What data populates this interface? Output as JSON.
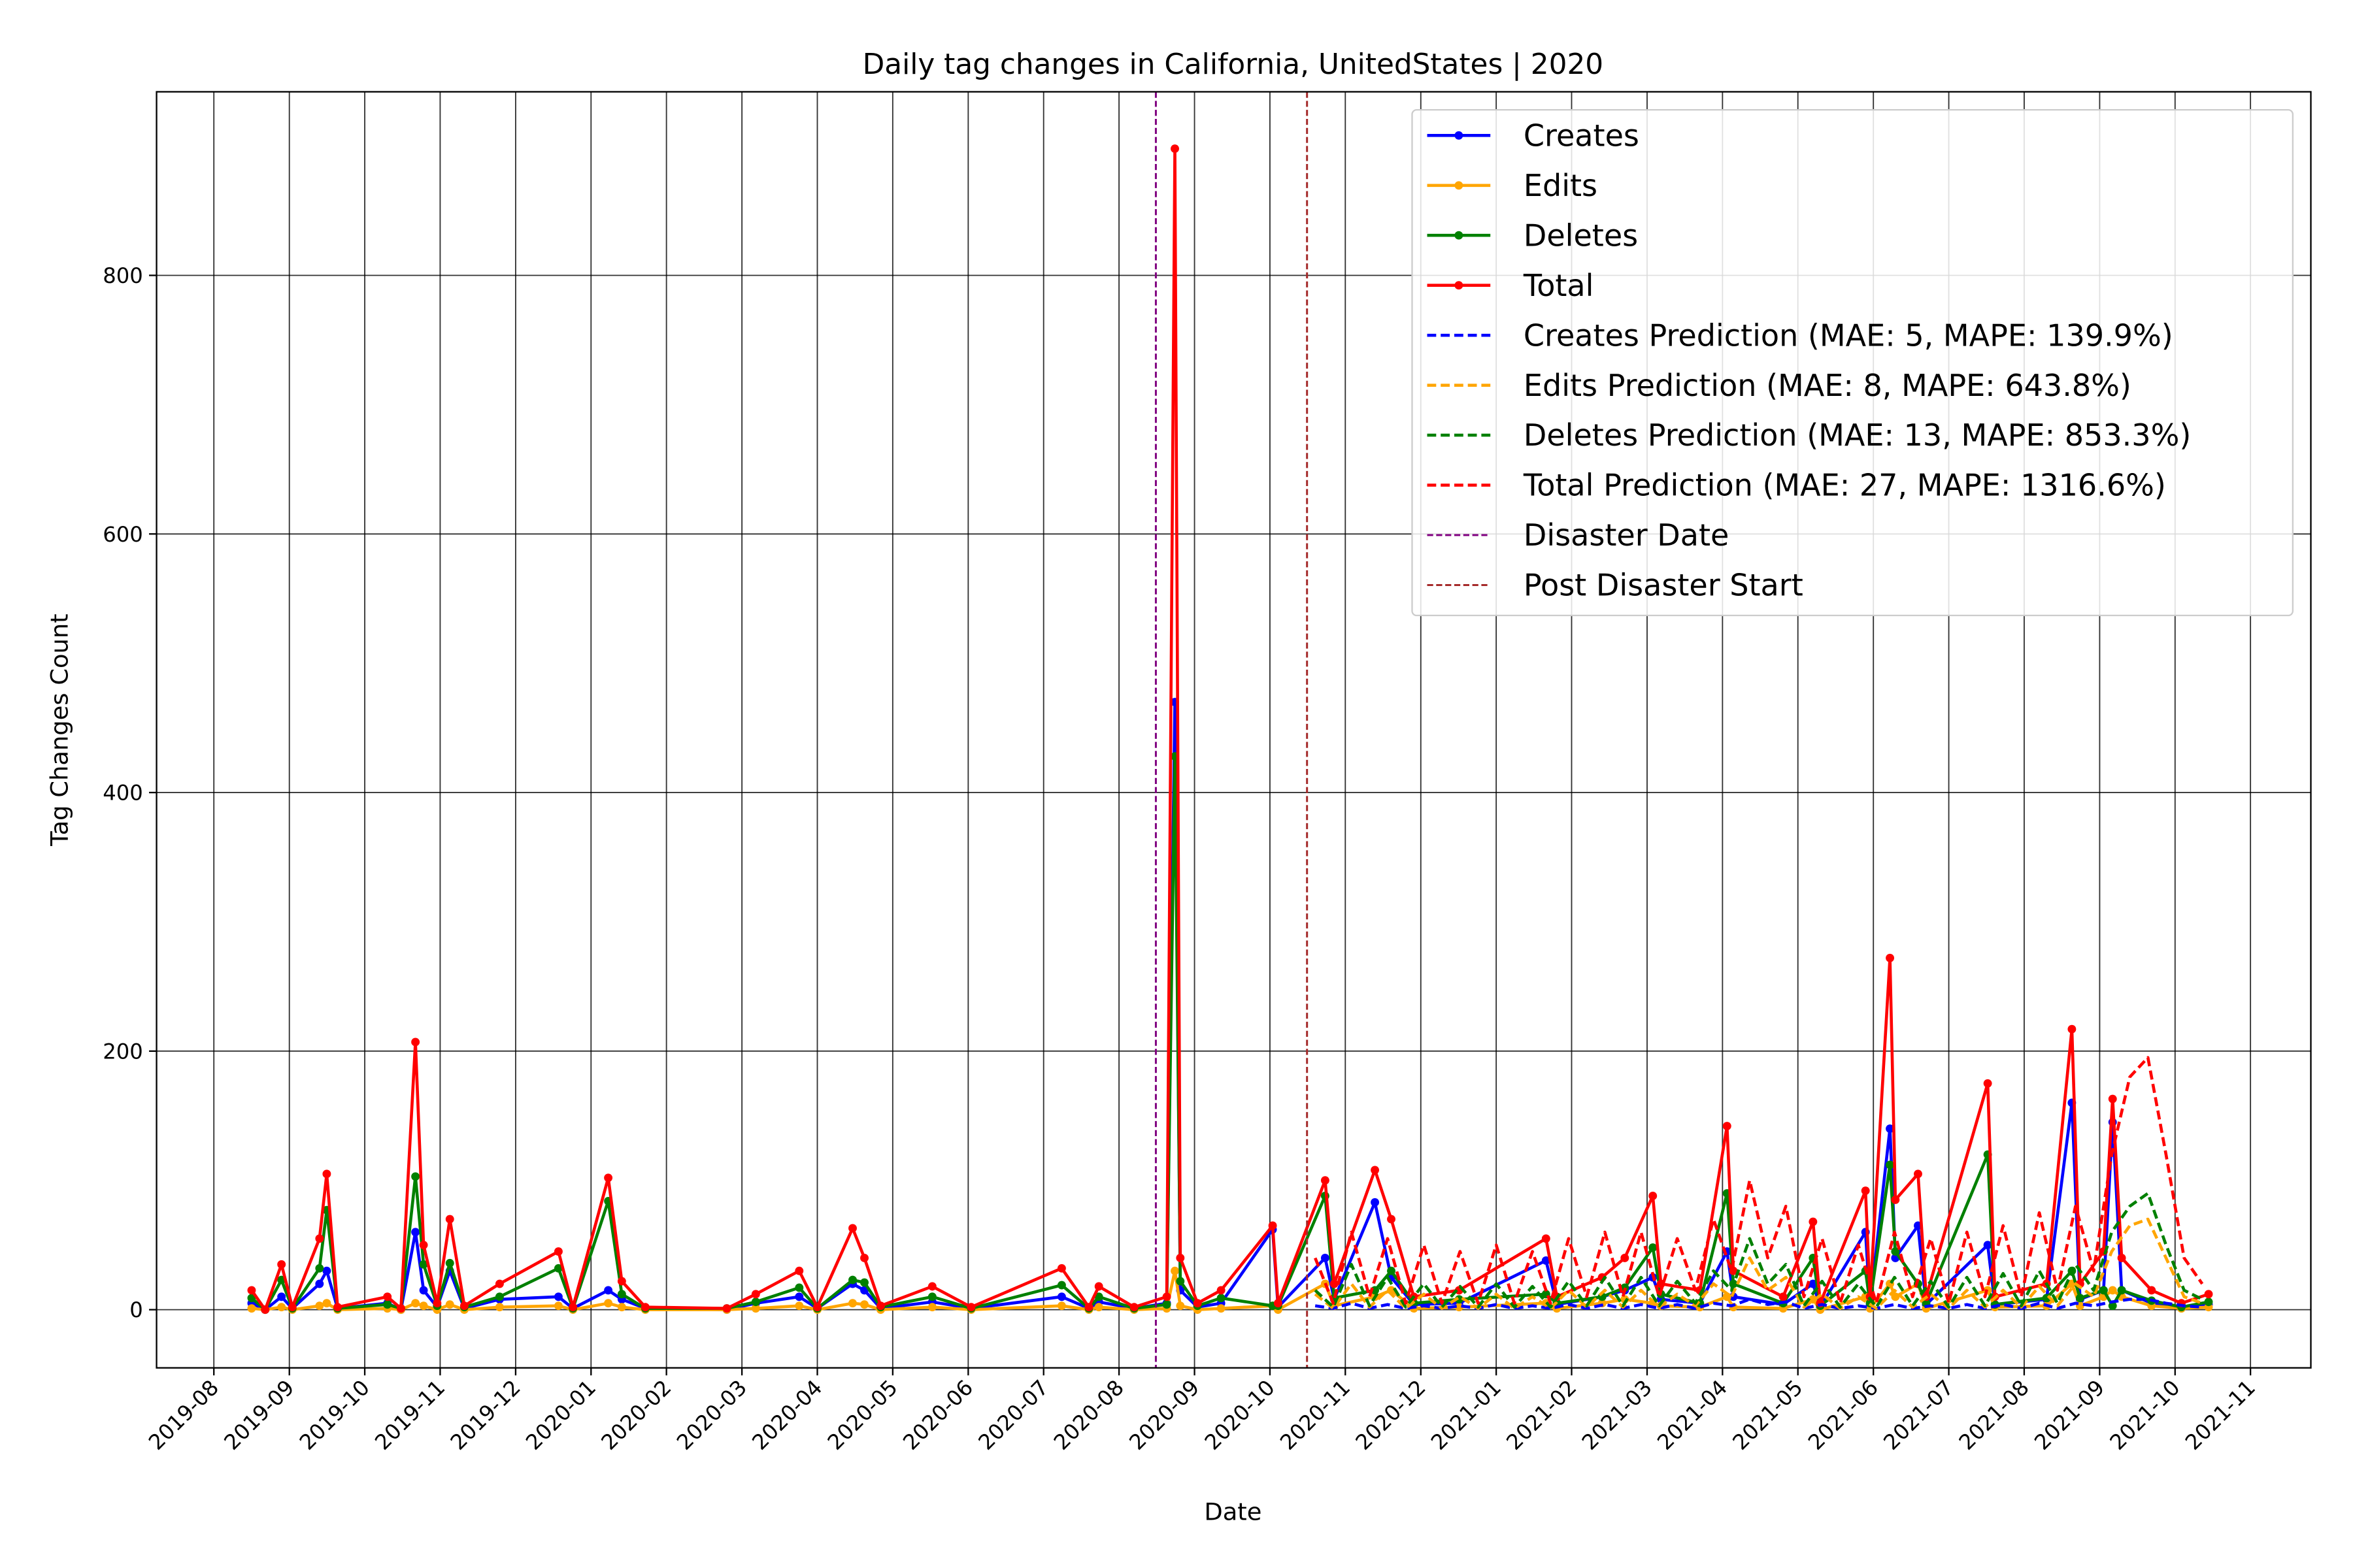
{
  "chart_data": {
    "type": "line",
    "title": "Daily tag changes in California, UnitedStates | 2020",
    "x_label": "Date",
    "y_label": "Tag Changes Count",
    "xlim": [
      2019.52,
      2021.9
    ],
    "ylim": [
      -45,
      942
    ],
    "yticks": [
      0,
      200,
      400,
      600,
      800
    ],
    "xticks": [
      {
        "value": 2019.5833,
        "label": "2019-08"
      },
      {
        "value": 2019.6667,
        "label": "2019-09"
      },
      {
        "value": 2019.75,
        "label": "2019-10"
      },
      {
        "value": 2019.8333,
        "label": "2019-11"
      },
      {
        "value": 2019.9167,
        "label": "2019-12"
      },
      {
        "value": 2020.0,
        "label": "2020-01"
      },
      {
        "value": 2020.0833,
        "label": "2020-02"
      },
      {
        "value": 2020.1667,
        "label": "2020-03"
      },
      {
        "value": 2020.25,
        "label": "2020-04"
      },
      {
        "value": 2020.3333,
        "label": "2020-05"
      },
      {
        "value": 2020.4167,
        "label": "2020-06"
      },
      {
        "value": 2020.5,
        "label": "2020-07"
      },
      {
        "value": 2020.5833,
        "label": "2020-08"
      },
      {
        "value": 2020.6667,
        "label": "2020-09"
      },
      {
        "value": 2020.75,
        "label": "2020-10"
      },
      {
        "value": 2020.8333,
        "label": "2020-11"
      },
      {
        "value": 2020.9167,
        "label": "2020-12"
      },
      {
        "value": 2021.0,
        "label": "2021-01"
      },
      {
        "value": 2021.0833,
        "label": "2021-02"
      },
      {
        "value": 2021.1667,
        "label": "2021-03"
      },
      {
        "value": 2021.25,
        "label": "2021-04"
      },
      {
        "value": 2021.3333,
        "label": "2021-05"
      },
      {
        "value": 2021.4167,
        "label": "2021-06"
      },
      {
        "value": 2021.5,
        "label": "2021-07"
      },
      {
        "value": 2021.5833,
        "label": "2021-08"
      },
      {
        "value": 2021.6667,
        "label": "2021-09"
      },
      {
        "value": 2021.75,
        "label": "2021-10"
      },
      {
        "value": 2021.8333,
        "label": "2021-11"
      }
    ],
    "grid": true,
    "legend": "upper right",
    "x": [
      2019.625,
      2019.64,
      2019.658,
      2019.67,
      2019.7,
      2019.708,
      2019.72,
      2019.775,
      2019.79,
      2019.806,
      2019.815,
      2019.83,
      2019.844,
      2019.86,
      2019.899,
      2019.964,
      2019.98,
      2020.019,
      2020.034,
      2020.06,
      2020.15,
      2020.182,
      2020.23,
      2020.25,
      2020.289,
      2020.302,
      2020.32,
      2020.377,
      2020.42,
      2020.52,
      2020.55,
      2020.561,
      2020.6,
      2020.636,
      2020.645,
      2020.651,
      2020.67,
      2020.696,
      2020.753,
      2020.759,
      2020.811,
      2020.821,
      2020.866,
      2020.884,
      2020.909,
      2020.959,
      2021.055,
      2021.067,
      2021.117,
      2021.142,
      2021.173,
      2021.182,
      2021.225,
      2021.255,
      2021.262,
      2021.317,
      2021.35,
      2021.358,
      2021.408,
      2021.413,
      2021.435,
      2021.441,
      2021.466,
      2021.475,
      2021.543,
      2021.551,
      2021.608,
      2021.636,
      2021.645,
      2021.671,
      2021.681,
      2021.691,
      2021.724,
      2021.757,
      2021.787
    ],
    "series": [
      {
        "name": "Creates",
        "color": "#0000ff",
        "style": "solid",
        "markers": true,
        "values": [
          5,
          0,
          10,
          1,
          20,
          30,
          1,
          5,
          0,
          60,
          15,
          2,
          30,
          1,
          8,
          10,
          1,
          15,
          8,
          1,
          0,
          5,
          10,
          1,
          20,
          15,
          1,
          6,
          1,
          10,
          1,
          6,
          1,
          5,
          470,
          15,
          2,
          5,
          62,
          2,
          40,
          8,
          83,
          25,
          4,
          5,
          38,
          4,
          10,
          15,
          25,
          8,
          5,
          45,
          10,
          4,
          20,
          2,
          60,
          4,
          140,
          40,
          65,
          4,
          50,
          4,
          8,
          160,
          8,
          15,
          145,
          15,
          5,
          2,
          4
        ]
      },
      {
        "name": "Edits",
        "color": "#ffa500",
        "style": "solid",
        "markers": true,
        "values": [
          1,
          0,
          2,
          0,
          3,
          5,
          0,
          1,
          0,
          5,
          3,
          0,
          4,
          0,
          2,
          3,
          0,
          5,
          2,
          0,
          0,
          1,
          3,
          0,
          5,
          4,
          0,
          2,
          0,
          3,
          0,
          2,
          0,
          1,
          30,
          3,
          0,
          1,
          3,
          0,
          20,
          3,
          10,
          15,
          1,
          2,
          5,
          1,
          5,
          8,
          5,
          3,
          2,
          10,
          2,
          1,
          8,
          0,
          10,
          1,
          20,
          10,
          20,
          1,
          15,
          2,
          3,
          20,
          3,
          10,
          15,
          10,
          3,
          1,
          2
        ]
      },
      {
        "name": "Deletes",
        "color": "#008000",
        "style": "solid",
        "markers": true,
        "values": [
          9,
          0,
          23,
          1,
          32,
          77,
          1,
          4,
          1,
          103,
          35,
          3,
          36,
          2,
          10,
          32,
          1,
          84,
          12,
          1,
          1,
          6,
          17,
          1,
          23,
          21,
          2,
          10,
          1,
          19,
          1,
          10,
          1,
          4,
          428,
          22,
          3,
          9,
          3,
          3,
          88,
          9,
          15,
          30,
          5,
          8,
          12,
          5,
          10,
          17,
          48,
          12,
          5,
          90,
          20,
          5,
          40,
          3,
          30,
          5,
          112,
          45,
          20,
          5,
          120,
          4,
          9,
          30,
          9,
          15,
          3,
          15,
          7,
          2,
          6
        ]
      },
      {
        "name": "Total",
        "color": "#ff0000",
        "style": "solid",
        "markers": true,
        "values": [
          15,
          0,
          35,
          2,
          55,
          105,
          2,
          10,
          1,
          207,
          50,
          5,
          70,
          3,
          20,
          45,
          2,
          102,
          22,
          2,
          1,
          12,
          30,
          2,
          63,
          40,
          3,
          18,
          2,
          32,
          2,
          18,
          2,
          10,
          898,
          40,
          5,
          15,
          65,
          5,
          100,
          20,
          108,
          70,
          10,
          15,
          55,
          10,
          25,
          40,
          88,
          20,
          15,
          142,
          30,
          10,
          68,
          5,
          92,
          10,
          272,
          85,
          105,
          10,
          175,
          10,
          20,
          217,
          20,
          45,
          163,
          40,
          15,
          5,
          12
        ]
      },
      {
        "name": "Creates Prediction (MAE: 5, MAPE: 139.9%)",
        "color": "#0000ff",
        "style": "dashed",
        "markers": false,
        "x": [
          2020.8,
          2020.82,
          2020.84,
          2020.86,
          2020.88,
          2020.9,
          2020.92,
          2020.94,
          2020.96,
          2020.98,
          2021.0,
          2021.02,
          2021.04,
          2021.06,
          2021.08,
          2021.1,
          2021.12,
          2021.14,
          2021.16,
          2021.18,
          2021.2,
          2021.22,
          2021.24,
          2021.26,
          2021.28,
          2021.3,
          2021.32,
          2021.34,
          2021.36,
          2021.38,
          2021.4,
          2021.42,
          2021.44,
          2021.46,
          2021.48,
          2021.5,
          2021.52,
          2021.54,
          2021.56,
          2021.58,
          2021.6,
          2021.62,
          2021.64,
          2021.66,
          2021.68,
          2021.7,
          2021.72,
          2021.74,
          2021.76,
          2021.78
        ],
        "values": [
          3,
          1,
          5,
          1,
          4,
          1,
          3,
          1,
          3,
          1,
          4,
          1,
          3,
          1,
          4,
          1,
          4,
          1,
          4,
          1,
          4,
          1,
          5,
          3,
          8,
          4,
          6,
          1,
          4,
          1,
          3,
          1,
          4,
          1,
          3,
          1,
          4,
          1,
          4,
          1,
          5,
          1,
          5,
          3,
          6,
          8,
          8,
          5,
          3,
          2
        ]
      },
      {
        "name": "Edits Prediction (MAE: 8, MAPE: 643.8%)",
        "color": "#ffa500",
        "style": "dashed",
        "markers": false,
        "x": [
          2020.8,
          2020.82,
          2020.84,
          2020.86,
          2020.88,
          2020.9,
          2020.92,
          2020.94,
          2020.96,
          2020.98,
          2021.0,
          2021.02,
          2021.04,
          2021.06,
          2021.08,
          2021.1,
          2021.12,
          2021.14,
          2021.16,
          2021.18,
          2021.2,
          2021.22,
          2021.24,
          2021.26,
          2021.28,
          2021.3,
          2021.32,
          2021.34,
          2021.36,
          2021.38,
          2021.4,
          2021.42,
          2021.44,
          2021.46,
          2021.48,
          2021.5,
          2021.52,
          2021.54,
          2021.56,
          2021.58,
          2021.6,
          2021.62,
          2021.64,
          2021.66,
          2021.68,
          2021.7,
          2021.72,
          2021.74,
          2021.76,
          2021.78
        ],
        "values": [
          12,
          1,
          20,
          2,
          15,
          1,
          12,
          1,
          10,
          1,
          12,
          1,
          10,
          1,
          15,
          2,
          15,
          2,
          15,
          2,
          12,
          3,
          20,
          10,
          40,
          15,
          25,
          2,
          12,
          1,
          10,
          1,
          15,
          2,
          12,
          1,
          15,
          2,
          15,
          2,
          18,
          3,
          20,
          10,
          45,
          65,
          70,
          40,
          10,
          5
        ]
      },
      {
        "name": "Deletes Prediction (MAE: 13, MAPE: 853.3%)",
        "color": "#008000",
        "style": "dashed",
        "markers": false,
        "x": [
          2020.8,
          2020.82,
          2020.84,
          2020.86,
          2020.88,
          2020.9,
          2020.92,
          2020.94,
          2020.96,
          2020.98,
          2021.0,
          2021.02,
          2021.04,
          2021.06,
          2021.08,
          2021.1,
          2021.12,
          2021.14,
          2021.16,
          2021.18,
          2021.2,
          2021.22,
          2021.24,
          2021.26,
          2021.28,
          2021.3,
          2021.32,
          2021.34,
          2021.36,
          2021.38,
          2021.4,
          2021.42,
          2021.44,
          2021.46,
          2021.48,
          2021.5,
          2021.52,
          2021.54,
          2021.56,
          2021.58,
          2021.6,
          2021.62,
          2021.64,
          2021.66,
          2021.68,
          2021.7,
          2021.72,
          2021.74,
          2021.76,
          2021.78
        ],
        "values": [
          15,
          2,
          35,
          3,
          25,
          2,
          20,
          2,
          18,
          2,
          20,
          2,
          18,
          2,
          22,
          3,
          25,
          3,
          25,
          3,
          22,
          5,
          30,
          15,
          55,
          20,
          35,
          3,
          22,
          2,
          20,
          2,
          25,
          3,
          22,
          2,
          25,
          3,
          28,
          3,
          30,
          5,
          35,
          15,
          60,
          80,
          90,
          50,
          15,
          8
        ]
      },
      {
        "name": "Total Prediction (MAE: 27, MAPE: 1316.6%)",
        "color": "#ff0000",
        "style": "dashed",
        "markers": false,
        "x": [
          2020.8,
          2020.82,
          2020.84,
          2020.86,
          2020.88,
          2020.9,
          2020.92,
          2020.94,
          2020.96,
          2020.98,
          2021.0,
          2021.02,
          2021.04,
          2021.06,
          2021.08,
          2021.1,
          2021.12,
          2021.14,
          2021.16,
          2021.18,
          2021.2,
          2021.22,
          2021.24,
          2021.26,
          2021.28,
          2021.3,
          2021.32,
          2021.34,
          2021.36,
          2021.38,
          2021.4,
          2021.42,
          2021.44,
          2021.46,
          2021.48,
          2021.5,
          2021.52,
          2021.54,
          2021.56,
          2021.58,
          2021.6,
          2021.62,
          2021.64,
          2021.66,
          2021.68,
          2021.7,
          2021.72,
          2021.74,
          2021.76,
          2021.78
        ],
        "values": [
          40,
          5,
          60,
          10,
          55,
          5,
          50,
          5,
          45,
          5,
          50,
          5,
          45,
          5,
          55,
          10,
          60,
          10,
          60,
          10,
          55,
          15,
          70,
          30,
          100,
          40,
          80,
          10,
          55,
          5,
          50,
          5,
          60,
          10,
          55,
          5,
          60,
          10,
          65,
          10,
          75,
          15,
          80,
          30,
          120,
          180,
          195,
          120,
          40,
          20
        ]
      }
    ],
    "vlines": [
      {
        "name": "Disaster Date",
        "x": 2020.624,
        "color": "#800080"
      },
      {
        "name": "Post Disaster Start",
        "x": 2020.791,
        "color": "#a52a2a"
      }
    ]
  }
}
